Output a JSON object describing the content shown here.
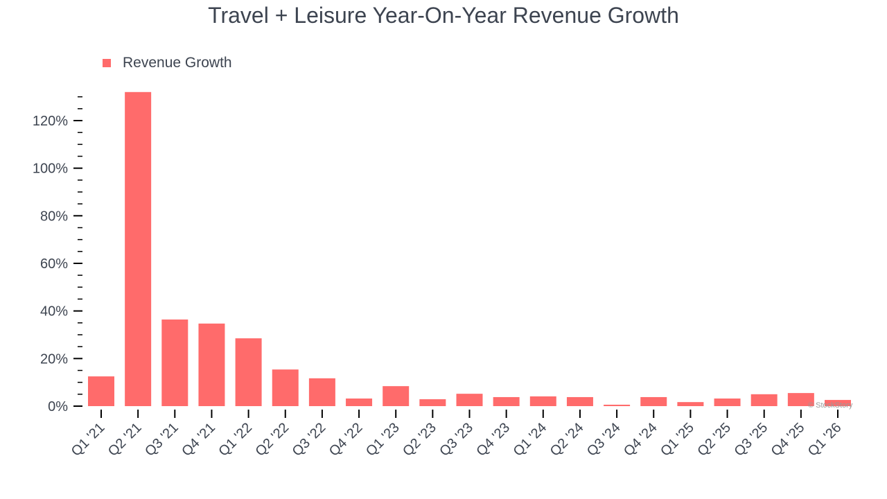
{
  "chart_data": {
    "type": "bar",
    "title": "Travel + Leisure Year-On-Year Revenue Growth",
    "xlabel": "",
    "ylabel": "",
    "ylim": [
      0,
      130
    ],
    "yticks": [
      0,
      20,
      40,
      60,
      80,
      100,
      120
    ],
    "ytick_labels": [
      "0%",
      "20%",
      "40%",
      "60%",
      "80%",
      "100%",
      "120%"
    ],
    "grid": false,
    "legend_position": "top-left",
    "categories": [
      "Q1 '21",
      "Q2 '21",
      "Q3 '21",
      "Q4 '21",
      "Q1 '22",
      "Q2 '22",
      "Q3 '22",
      "Q4 '22",
      "Q1 '23",
      "Q2 '23",
      "Q3 '23",
      "Q4 '23",
      "Q1 '24",
      "Q2 '24",
      "Q3 '24",
      "Q4 '24",
      "Q1 '25",
      "Q2 '25",
      "Q3 '25",
      "Q4 '25",
      "Q1 '26"
    ],
    "series": [
      {
        "name": "Revenue Growth",
        "color": "#ff6b6b",
        "values": [
          12.5,
          132,
          36.4,
          34.7,
          28.5,
          15.4,
          11.7,
          3.2,
          8.4,
          2.9,
          5.2,
          3.8,
          4.1,
          3.8,
          0.6,
          3.8,
          1.7,
          3.2,
          5.0,
          5.5,
          2.6
        ]
      }
    ],
    "watermark": "© StockStory"
  }
}
